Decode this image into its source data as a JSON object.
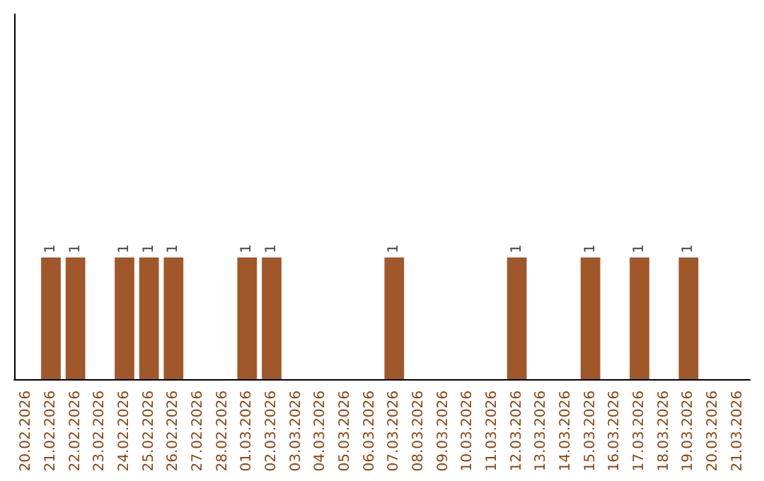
{
  "chart_data": {
    "type": "bar",
    "categories": [
      "20.02.2026",
      "21.02.2026",
      "22.02.2026",
      "23.02.2026",
      "24.02.2026",
      "25.02.2026",
      "26.02.2026",
      "27.02.2026",
      "28.02.2026",
      "01.03.2026",
      "02.03.2026",
      "03.03.2026",
      "04.03.2026",
      "05.03.2026",
      "06.03.2026",
      "07.03.2026",
      "08.03.2026",
      "09.03.2026",
      "10.03.2026",
      "11.03.2026",
      "12.03.2026",
      "13.03.2026",
      "14.03.2026",
      "15.03.2026",
      "16.03.2026",
      "17.03.2026",
      "18.03.2026",
      "19.03.2026",
      "20.03.2026",
      "21.03.2026"
    ],
    "values": [
      0,
      1,
      1,
      0,
      1,
      1,
      1,
      0,
      0,
      1,
      1,
      0,
      0,
      0,
      0,
      1,
      0,
      0,
      0,
      0,
      1,
      0,
      0,
      1,
      0,
      1,
      0,
      1,
      0,
      0
    ],
    "value_labels": [
      null,
      "1",
      "1",
      null,
      "1",
      "1",
      "1",
      null,
      null,
      "1",
      "1",
      null,
      null,
      null,
      null,
      "1",
      null,
      null,
      null,
      null,
      "1",
      null,
      null,
      "1",
      null,
      "1",
      null,
      "1",
      null,
      null
    ],
    "color": "#a0582a",
    "ylim": [
      0,
      3
    ],
    "tick_labels": "x"
  }
}
